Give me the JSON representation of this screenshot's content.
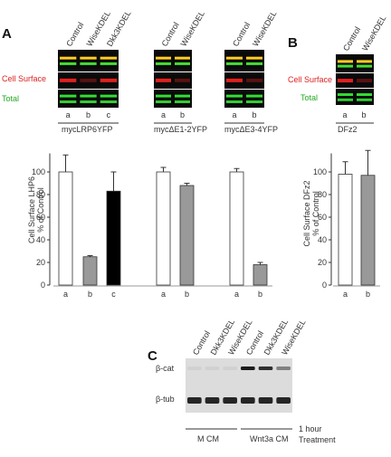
{
  "panel_a": {
    "letter": "A",
    "row_labels": {
      "cell_surface": "Cell Surface",
      "total": "Total"
    },
    "colors": {
      "cell_surface": "#dd2222",
      "total": "#22aa22"
    },
    "groups": [
      {
        "construct": "mycLRP6YFP",
        "lanes": [
          "Control",
          "WiseKDEL",
          "Dkk3KDEL"
        ],
        "lane_letters": [
          "a",
          "b",
          "c"
        ]
      },
      {
        "construct": "mycΔE1-2YFP",
        "lanes": [
          "Control",
          "WiseKDEL"
        ],
        "lane_letters": [
          "a",
          "b"
        ]
      },
      {
        "construct": "mycΔE3-4YFP",
        "lanes": [
          "Control",
          "WiseKDEL"
        ],
        "lane_letters": [
          "a",
          "b"
        ]
      }
    ]
  },
  "panel_b": {
    "letter": "B",
    "lanes": [
      "Control",
      "WiseKDEL"
    ],
    "lane_letters": [
      "a",
      "b"
    ],
    "construct": "DFz2",
    "row_labels": {
      "cell_surface": "Cell Surface",
      "total": "Total"
    }
  },
  "panel_c": {
    "letter": "C",
    "lanes": [
      "Control",
      "Dkk3KDEL",
      "WiseKDEL",
      "Control",
      "Dkk3KDEL",
      "WiseKDEL"
    ],
    "row_labels": [
      "β-cat",
      "β-tub"
    ],
    "conditions": [
      "M CM",
      "Wnt3a CM"
    ],
    "treatment": "1 hour\nTreatment"
  },
  "chart_data": [
    {
      "type": "bar",
      "ylabel": "Cell Surface LHP6\n% of Control",
      "ylim": [
        0,
        120
      ],
      "yticks": [
        0,
        20,
        40,
        60,
        80,
        100
      ],
      "categories": [
        "a",
        "b",
        "c",
        "a",
        "b",
        "a",
        "b"
      ],
      "groups": [
        "mycLRP6YFP",
        "mycΔE1-2YFP",
        "mycΔE3-4YFP"
      ],
      "values": [
        100,
        25,
        83,
        100,
        88,
        100,
        18
      ],
      "errors": [
        15,
        1,
        17,
        4,
        2,
        3,
        2
      ],
      "bar_colors": [
        "#ffffff",
        "#999999",
        "#000000",
        "#ffffff",
        "#999999",
        "#ffffff",
        "#999999"
      ]
    },
    {
      "type": "bar",
      "ylabel": "Cell Surface DFz2\n% of Control",
      "ylim": [
        0,
        120
      ],
      "yticks": [
        0,
        20,
        40,
        60,
        80,
        100
      ],
      "categories": [
        "a",
        "b"
      ],
      "values": [
        98,
        97
      ],
      "errors": [
        11,
        22
      ],
      "bar_colors": [
        "#ffffff",
        "#999999"
      ]
    }
  ]
}
